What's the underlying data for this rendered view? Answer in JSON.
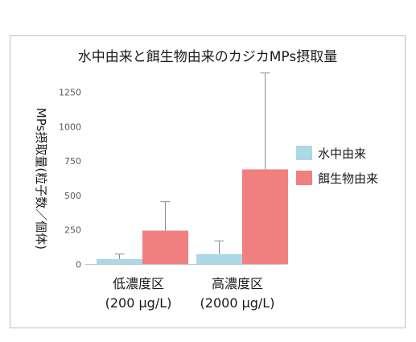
{
  "chart_data": {
    "type": "bar",
    "title": "水中由来と餌生物由来のカジカMPs摂取量",
    "xlabel": "",
    "ylabel": "MPs摂取量(粒子数／個体)",
    "ylim": [
      0,
      1400
    ],
    "yticks": [
      0,
      250,
      500,
      750,
      1000,
      1250
    ],
    "categories": [
      {
        "line1": "低濃度区",
        "line2": "(200 μg/L)"
      },
      {
        "line1": "高濃度区",
        "line2": "(2000 μg/L)"
      }
    ],
    "series": [
      {
        "name": "水中由来",
        "color": "#ADD8E6",
        "values": [
          38,
          75
        ],
        "error_upper": [
          75,
          170
        ]
      },
      {
        "name": "餌生物由来",
        "color": "#F08080",
        "values": [
          245,
          690
        ],
        "error_upper": [
          455,
          1390
        ]
      }
    ],
    "legend_position": "right",
    "grid": false
  }
}
